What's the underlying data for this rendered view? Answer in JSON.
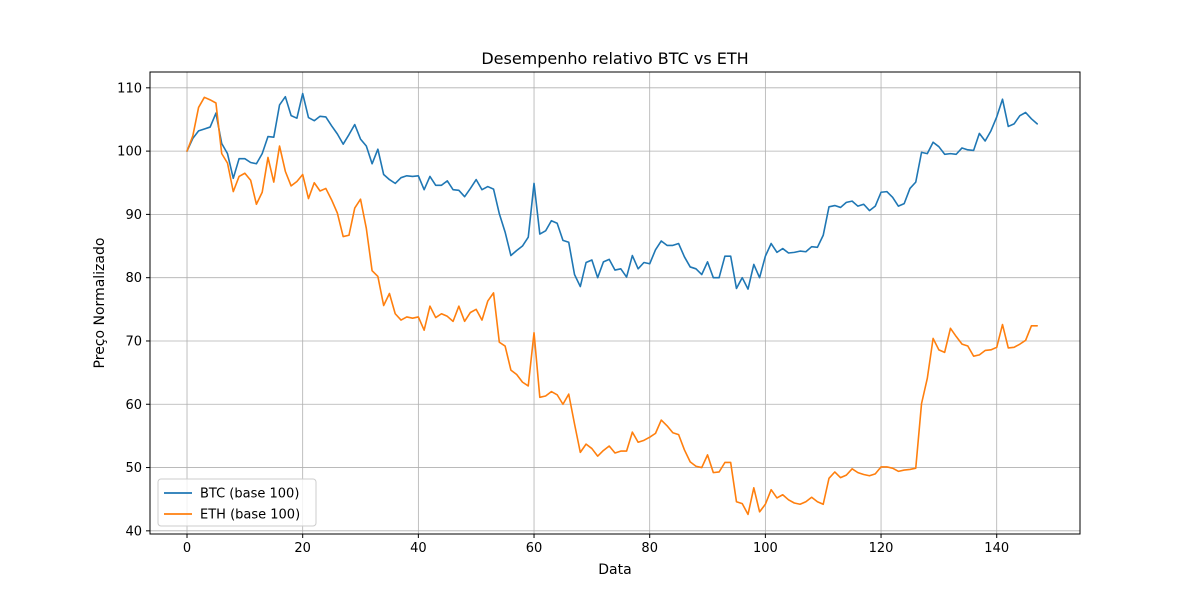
{
  "chart_data": {
    "type": "line",
    "title": "Desempenho relativo BTC vs ETH",
    "xlabel": "Data",
    "ylabel": "Preço Normalizado",
    "xlim": [
      -6.4,
      154.4
    ],
    "ylim": [
      39.5,
      112.5
    ],
    "xticks": [
      0,
      20,
      40,
      60,
      80,
      100,
      120,
      140
    ],
    "yticks": [
      40,
      50,
      60,
      70,
      80,
      90,
      100,
      110
    ],
    "grid": true,
    "legend": "lower-left",
    "series": [
      {
        "name": "BTC (base 100)",
        "color": "#1f77b4",
        "values": [
          100.0,
          102.0,
          103.2,
          103.5,
          103.8,
          106.0,
          101.2,
          99.6,
          95.7,
          98.8,
          98.8,
          98.2,
          98.0,
          99.6,
          102.3,
          102.2,
          107.3,
          108.6,
          105.6,
          105.2,
          109.1,
          105.3,
          104.8,
          105.5,
          105.4,
          104.0,
          102.7,
          101.1,
          102.6,
          104.2,
          101.9,
          100.8,
          98.0,
          100.3,
          96.3,
          95.5,
          94.9,
          95.8,
          96.1,
          96.0,
          96.1,
          93.9,
          96.0,
          94.6,
          94.6,
          95.3,
          93.9,
          93.8,
          92.8,
          94.1,
          95.5,
          93.9,
          94.4,
          94.0,
          90.1,
          87.2,
          83.5,
          84.3,
          85.0,
          86.4,
          94.9,
          86.9,
          87.4,
          89.0,
          88.6,
          85.9,
          85.6,
          80.5,
          78.6,
          82.4,
          82.8,
          80.0,
          82.5,
          82.9,
          81.2,
          81.4,
          80.1,
          83.5,
          81.4,
          82.4,
          82.2,
          84.4,
          85.8,
          85.1,
          85.1,
          85.4,
          83.3,
          81.7,
          81.4,
          80.5,
          82.5,
          80.0,
          80.0,
          83.4,
          83.4,
          78.3,
          80.0,
          78.2,
          82.1,
          80.0,
          83.4,
          85.4,
          84.0,
          84.6,
          83.9,
          84.0,
          84.2,
          84.1,
          84.9,
          84.8,
          86.7,
          91.2,
          91.4,
          91.1,
          91.9,
          92.1,
          91.3,
          91.6,
          90.6,
          91.3,
          93.5,
          93.6,
          92.7,
          91.3,
          91.7,
          94.1,
          95.1,
          99.8,
          99.6,
          101.4,
          100.7,
          99.5,
          99.6,
          99.5,
          100.5,
          100.2,
          100.1,
          102.8,
          101.6,
          103.2,
          105.4,
          108.2,
          103.9,
          104.3,
          105.6,
          106.1,
          105.1,
          104.3
        ]
      },
      {
        "name": "ETH (base 100)",
        "color": "#ff7f0e",
        "values": [
          100.0,
          102.4,
          106.9,
          108.5,
          108.1,
          107.6,
          99.6,
          98.1,
          93.6,
          96.0,
          96.5,
          95.4,
          91.6,
          93.5,
          99.0,
          95.1,
          100.8,
          96.8,
          94.5,
          95.2,
          96.3,
          92.5,
          95.0,
          93.7,
          94.1,
          92.3,
          90.2,
          86.5,
          86.7,
          91.0,
          92.4,
          87.8,
          81.1,
          80.2,
          75.6,
          77.5,
          74.3,
          73.3,
          73.8,
          73.6,
          73.8,
          71.7,
          75.5,
          73.7,
          74.3,
          73.9,
          73.1,
          75.5,
          73.1,
          74.5,
          75.0,
          73.3,
          76.3,
          77.6,
          69.8,
          69.2,
          65.4,
          64.7,
          63.5,
          62.9,
          71.3,
          61.1,
          61.3,
          62.0,
          61.5,
          60.0,
          61.6,
          56.9,
          52.4,
          53.7,
          53.0,
          51.8,
          52.7,
          53.4,
          52.3,
          52.6,
          52.6,
          55.6,
          54.0,
          54.3,
          54.8,
          55.4,
          57.5,
          56.6,
          55.5,
          55.2,
          52.8,
          50.9,
          50.2,
          50.0,
          52.0,
          49.2,
          49.3,
          50.8,
          50.8,
          44.6,
          44.3,
          42.6,
          46.8,
          43.0,
          44.2,
          46.5,
          45.2,
          45.7,
          44.9,
          44.4,
          44.2,
          44.6,
          45.3,
          44.6,
          44.2,
          48.3,
          49.3,
          48.4,
          48.8,
          49.8,
          49.2,
          48.9,
          48.7,
          49.0,
          50.1,
          50.1,
          49.9,
          49.4,
          49.6,
          49.7,
          49.9,
          60.1,
          64.1,
          70.4,
          68.6,
          68.2,
          72.0,
          70.7,
          69.5,
          69.2,
          67.6,
          67.8,
          68.5,
          68.6,
          69.0,
          72.6,
          68.9,
          69.0,
          69.5,
          70.1,
          72.4,
          72.4
        ]
      }
    ]
  }
}
